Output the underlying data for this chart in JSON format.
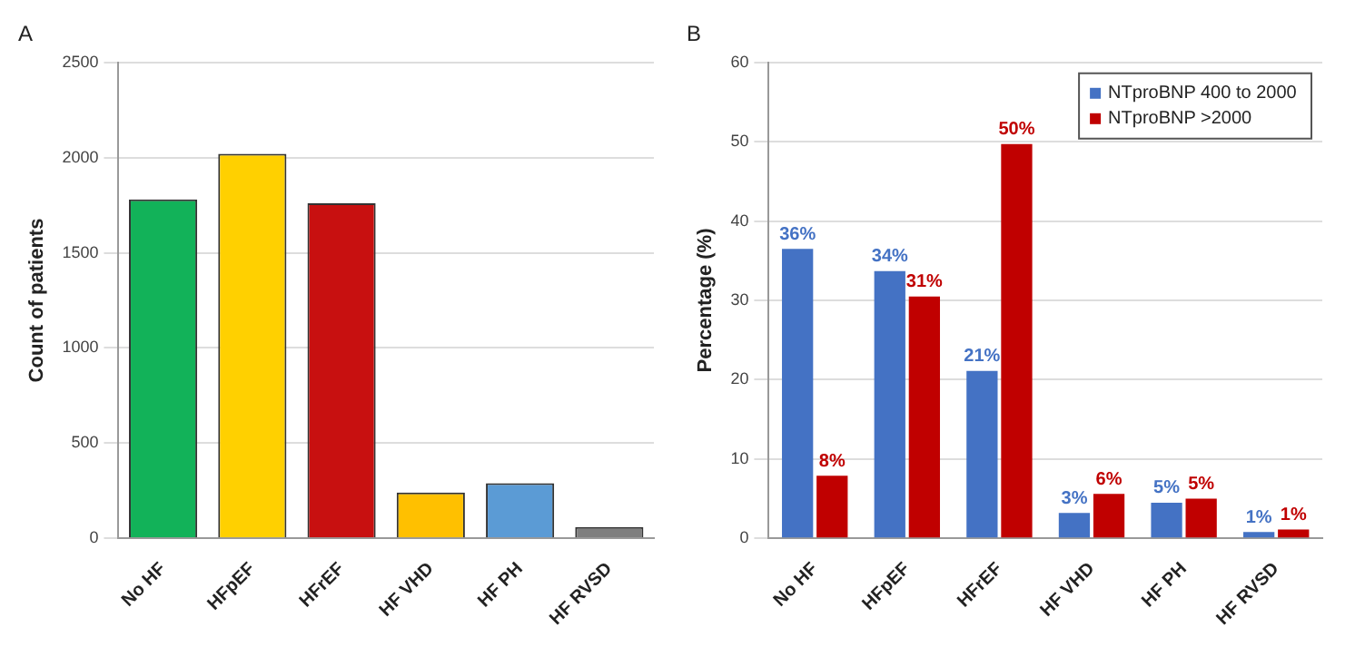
{
  "chart_data": [
    {
      "type": "bar",
      "title": "A",
      "ylabel": "Count of patients",
      "categories": [
        "No HF",
        "HFpEF",
        "HFrEF",
        "HF VHD",
        "HF PH",
        "HF RVSD"
      ],
      "values": [
        1780,
        2020,
        1760,
        240,
        290,
        60
      ],
      "colors": [
        "#12b259",
        "#ffd000",
        "#c81010",
        "#ffc000",
        "#5b9bd5",
        "#7f7f7f"
      ],
      "ylim": [
        0,
        2500
      ],
      "yticks": [
        0,
        500,
        1000,
        1500,
        2000,
        2500
      ],
      "grid": "y",
      "legend": false
    },
    {
      "type": "bar",
      "title": "B",
      "ylabel": "Percentage (%)",
      "categories": [
        "No HF",
        "HFpEF",
        "HFrEF",
        "HF VHD",
        "HF PH",
        "HF RVSD"
      ],
      "series": [
        {
          "name": "NTproBNP 400 to 2000",
          "color": "#4472c4",
          "values": [
            36.5,
            33.7,
            21.1,
            3.2,
            4.5,
            0.8
          ],
          "value_labels": [
            "36%",
            "34%",
            "21%",
            "3%",
            "5%",
            "1%"
          ]
        },
        {
          "name": "NTproBNP >2000",
          "color": "#c00000",
          "values": [
            7.9,
            30.5,
            49.7,
            5.6,
            5.0,
            1.1
          ],
          "value_labels": [
            "8%",
            "31%",
            "50%",
            "6%",
            "5%",
            "1%"
          ]
        }
      ],
      "ylim": [
        0,
        60
      ],
      "yticks": [
        0,
        10,
        20,
        30,
        40,
        50,
        60
      ],
      "grid": "y",
      "legend": "top right"
    }
  ]
}
